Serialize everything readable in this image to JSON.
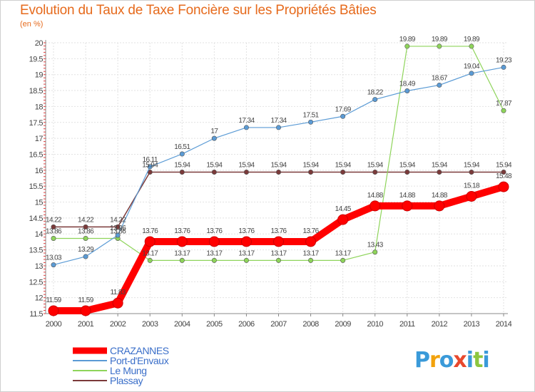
{
  "chart_data": {
    "type": "line",
    "title": "Evolution du Taux de Taxe Foncière sur les Propriétés Bâties",
    "unit_label": "(en %)",
    "x": [
      "2000",
      "2001",
      "2002",
      "2003",
      "2004",
      "2005",
      "2006",
      "2007",
      "2008",
      "2009",
      "2010",
      "2011",
      "2012",
      "2013",
      "2014"
    ],
    "ylim": [
      11.5,
      20
    ],
    "yticks": [
      "11.5",
      "12",
      "12.5",
      "13",
      "13.5",
      "14",
      "14.5",
      "15",
      "15.5",
      "16",
      "16.5",
      "17",
      "17.5",
      "18",
      "18.5",
      "19",
      "19.5",
      "20"
    ],
    "series": [
      {
        "name": "CRAZANNES",
        "color": "#ff0000",
        "values": [
          11.59,
          11.59,
          11.83,
          13.76,
          13.76,
          13.76,
          13.76,
          13.76,
          13.76,
          14.45,
          14.88,
          14.88,
          14.88,
          15.18,
          15.48
        ],
        "labels": [
          "11.59",
          "11.59",
          "11.83",
          "13.76",
          "13.76",
          "13.76",
          "13.76",
          "13.76",
          "13.76",
          "14.45",
          "14.88",
          "14.88",
          "14.88",
          "15.18",
          "15.48"
        ]
      },
      {
        "name": "Port-d'Envaux",
        "color": "#5b9bd5",
        "values": [
          13.03,
          13.29,
          13.96,
          16.11,
          16.51,
          17,
          17.34,
          17.34,
          17.51,
          17.69,
          18.22,
          18.49,
          18.67,
          19.04,
          19.23
        ],
        "labels": [
          "13.03",
          "13.29",
          "13.96",
          "16.11",
          "16.51",
          "17",
          "17.34",
          "17.34",
          "17.51",
          "17.69",
          "18.22",
          "18.49",
          "18.67",
          "19.04",
          "19.23"
        ]
      },
      {
        "name": "Le Mung",
        "color": "#8ed45a",
        "values": [
          13.86,
          13.86,
          13.86,
          13.17,
          13.17,
          13.17,
          13.17,
          13.17,
          13.17,
          13.17,
          13.43,
          19.89,
          19.89,
          19.89,
          17.87
        ],
        "labels": [
          "13.86",
          "13.86",
          "13.86",
          "13.17",
          "13.17",
          "13.17",
          "13.17",
          "13.17",
          "13.17",
          "13.17",
          "13.43",
          "19.89",
          "19.89",
          "19.89",
          "17.87"
        ]
      },
      {
        "name": "Plassay",
        "color": "#7b3a3a",
        "values": [
          14.22,
          14.22,
          14.22,
          15.94,
          15.94,
          15.94,
          15.94,
          15.94,
          15.94,
          15.94,
          15.94,
          15.94,
          15.94,
          15.94,
          15.94
        ],
        "labels": [
          "14.22",
          "14.22",
          "14.22",
          "15.94",
          "15.94",
          "15.94",
          "15.94",
          "15.94",
          "15.94",
          "15.94",
          "15.94",
          "15.94",
          "15.94",
          "15.94",
          "15.94"
        ]
      }
    ]
  },
  "logo": {
    "letters": [
      "P",
      "r",
      "o",
      "x",
      "i",
      "t",
      "i"
    ],
    "colors": [
      "#3a9ad9",
      "#f2a20c",
      "#3a9ad9",
      "#e8492e",
      "#3a9ad9",
      "#8cc63f",
      "#3a9ad9"
    ]
  }
}
